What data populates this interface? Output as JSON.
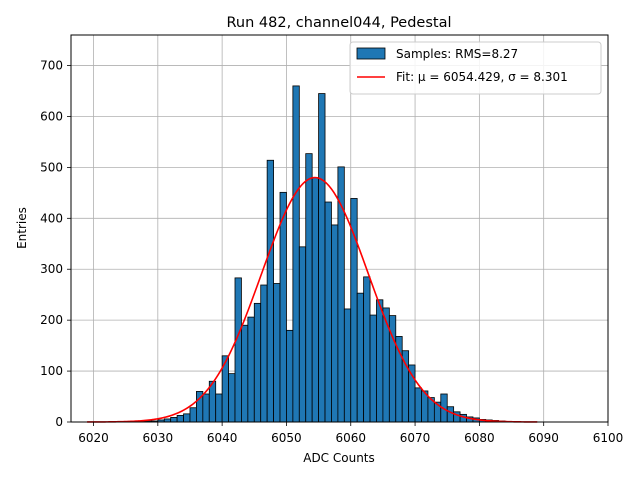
{
  "chart_data": {
    "type": "bar",
    "title": "Run 482, channel044, Pedestal",
    "xlabel": "ADC Counts",
    "ylabel": "Entries",
    "xlim": [
      6016.5,
      6100
    ],
    "ylim": [
      0,
      760
    ],
    "xticks": [
      6020,
      6030,
      6040,
      6050,
      6060,
      6070,
      6080,
      6090,
      6100
    ],
    "yticks": [
      0,
      100,
      200,
      300,
      400,
      500,
      600,
      700
    ],
    "grid": true,
    "legend_position": "top-right",
    "bin_width": 1,
    "histogram": {
      "name": "Samples: RMS=8.27",
      "color": "#1f77b4",
      "edgecolor": "#000000",
      "bin_starts": [
        6026,
        6027,
        6028,
        6029,
        6030,
        6031,
        6032,
        6033,
        6034,
        6035,
        6036,
        6037,
        6038,
        6039,
        6040,
        6041,
        6042,
        6043,
        6044,
        6045,
        6046,
        6047,
        6048,
        6049,
        6050,
        6051,
        6052,
        6053,
        6054,
        6055,
        6056,
        6057,
        6058,
        6059,
        6060,
        6061,
        6062,
        6063,
        6064,
        6065,
        6066,
        6067,
        6068,
        6069,
        6070,
        6071,
        6072,
        6073,
        6074,
        6075,
        6076,
        6077,
        6078,
        6079,
        6080,
        6081,
        6082,
        6083,
        6084
      ],
      "counts": [
        1,
        1,
        2,
        2,
        4,
        6,
        9,
        13,
        16,
        28,
        60,
        55,
        80,
        55,
        130,
        95,
        283,
        190,
        206,
        233,
        269,
        514,
        272,
        451,
        180,
        660,
        344,
        527,
        480,
        645,
        432,
        387,
        501,
        222,
        439,
        253,
        285,
        210,
        240,
        224,
        209,
        168,
        140,
        112,
        67,
        61,
        48,
        39,
        55,
        30,
        20,
        15,
        10,
        8,
        5,
        4,
        3,
        2,
        1
      ]
    },
    "fit": {
      "name": "Fit: μ = 6054.429, σ = 8.301",
      "color": "#ff0000",
      "mu": 6054.429,
      "sigma": 8.301,
      "amplitude": 480,
      "x_range": [
        6019,
        6089
      ]
    }
  }
}
